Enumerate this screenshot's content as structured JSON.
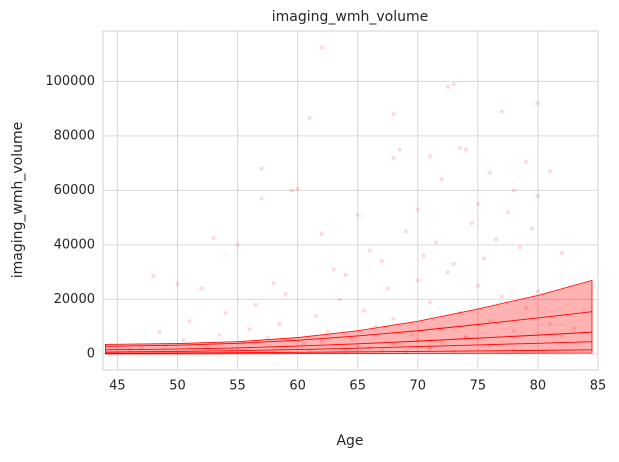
{
  "chart_data": {
    "type": "scatter",
    "title": "imaging_wmh_volume",
    "x_label": "Age",
    "y_label": "imaging_wmh_volume",
    "xlim": [
      43.8,
      85
    ],
    "ylim": [
      -5900,
      118500
    ],
    "xticks": [
      45,
      50,
      55,
      60,
      65,
      70,
      75,
      80,
      85
    ],
    "yticks": [
      0,
      20000,
      40000,
      60000,
      80000,
      100000
    ],
    "grid": true,
    "color": "#ff0000",
    "point_opacity": 0.15,
    "points": {
      "x": [
        62,
        73,
        72.5,
        61,
        68,
        80,
        77,
        57,
        60,
        59.5,
        57,
        68,
        68.5,
        71,
        73.5,
        74,
        76,
        79,
        80,
        81,
        72,
        78,
        48,
        53,
        55,
        62,
        65,
        70,
        75,
        66,
        69,
        71.5,
        74.5,
        77.5,
        79.5,
        63,
        58,
        52,
        50,
        67,
        70.5,
        76.5,
        78.5,
        82,
        64,
        73,
        75.5,
        48.5,
        49,
        50.5,
        51,
        52.5,
        53.5,
        54,
        55.5,
        56,
        56.5,
        57.5,
        58.5,
        59,
        60.5,
        61.5,
        62.5,
        63.5,
        64.5,
        65.5,
        66.5,
        67.5,
        68,
        69.5,
        70,
        71,
        72,
        72.5,
        73.5,
        74,
        75,
        76,
        77,
        78,
        79,
        80,
        81,
        82,
        83,
        46,
        47,
        54.5,
        58,
        61,
        64,
        66,
        69,
        71,
        73,
        76,
        78,
        80.5,
        62,
        65,
        68,
        70,
        72,
        74,
        67,
        71
      ],
      "y": [
        112500,
        99000,
        98000,
        86500,
        88000,
        92000,
        89000,
        68000,
        60500,
        60000,
        57000,
        72000,
        75000,
        72500,
        75500,
        75000,
        66500,
        70500,
        58000,
        67000,
        64000,
        60000,
        28500,
        42500,
        40000,
        44000,
        51000,
        53000,
        55000,
        38000,
        45000,
        41000,
        48000,
        52000,
        46000,
        31000,
        26000,
        24000,
        25500,
        34000,
        36000,
        42000,
        39000,
        37000,
        29000,
        33000,
        35000,
        8000,
        3000,
        5000,
        12000,
        2000,
        7000,
        15000,
        4000,
        9000,
        18000,
        6000,
        11000,
        22000,
        3500,
        14000,
        8000,
        20000,
        5500,
        16000,
        10000,
        24000,
        13000,
        7000,
        27000,
        19000,
        9000,
        30000,
        15000,
        6000,
        25000,
        12000,
        21000,
        8500,
        17000,
        23000,
        11000,
        6500,
        9500,
        1500,
        2500,
        1000,
        500,
        1200,
        800,
        2200,
        600,
        1800,
        900,
        3200,
        1400,
        700,
        4500,
        2800,
        3600,
        5200,
        4200,
        6200,
        1600,
        2600
      ]
    },
    "band": {
      "x": [
        44,
        50,
        55,
        60,
        65,
        70,
        75,
        80,
        84.5
      ],
      "upper": [
        3500,
        3800,
        4500,
        6000,
        8500,
        12000,
        16500,
        21500,
        27000
      ],
      "lower": [
        0,
        0,
        50,
        100,
        150,
        200,
        250,
        300,
        350
      ]
    },
    "lines": [
      {
        "x": [
          44,
          50,
          55,
          60,
          65,
          70,
          75,
          80,
          84.5
        ],
        "values": [
          2800,
          3200,
          3900,
          5000,
          6600,
          8500,
          10800,
          13200,
          15500
        ]
      },
      {
        "x": [
          44,
          50,
          55,
          60,
          65,
          70,
          75,
          80,
          84.5
        ],
        "values": [
          1500,
          1800,
          2200,
          2900,
          3700,
          4700,
          5800,
          6900,
          8000
        ]
      },
      {
        "x": [
          44,
          50,
          55,
          60,
          65,
          70,
          75,
          80,
          84.5
        ],
        "values": [
          700,
          900,
          1200,
          1600,
          2100,
          2700,
          3300,
          3900,
          4500
        ]
      },
      {
        "x": [
          44,
          50,
          55,
          60,
          65,
          70,
          75,
          80,
          84.5
        ],
        "values": [
          250,
          350,
          450,
          600,
          750,
          900,
          1100,
          1300,
          1500
        ]
      }
    ]
  }
}
